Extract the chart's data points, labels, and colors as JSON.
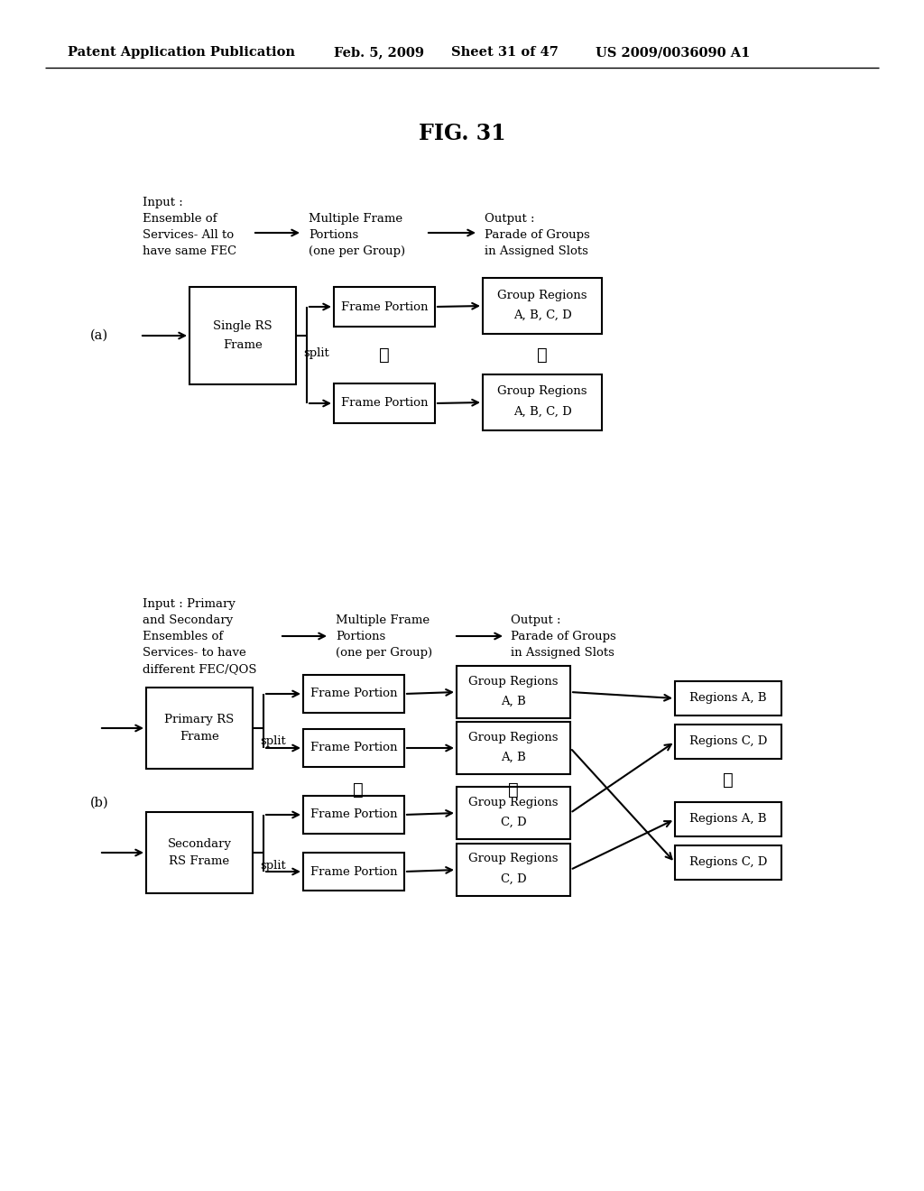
{
  "bg_color": "#ffffff",
  "header_text": "Patent Application Publication",
  "header_date": "Feb. 5, 2009",
  "header_sheet": "Sheet 31 of 47",
  "header_patent": "US 2009/0036090 A1",
  "fig_title": "FIG. 31",
  "header_fontsize": 10.5,
  "title_fontsize": 17,
  "body_fontsize": 9.5,
  "small_fontsize": 9
}
